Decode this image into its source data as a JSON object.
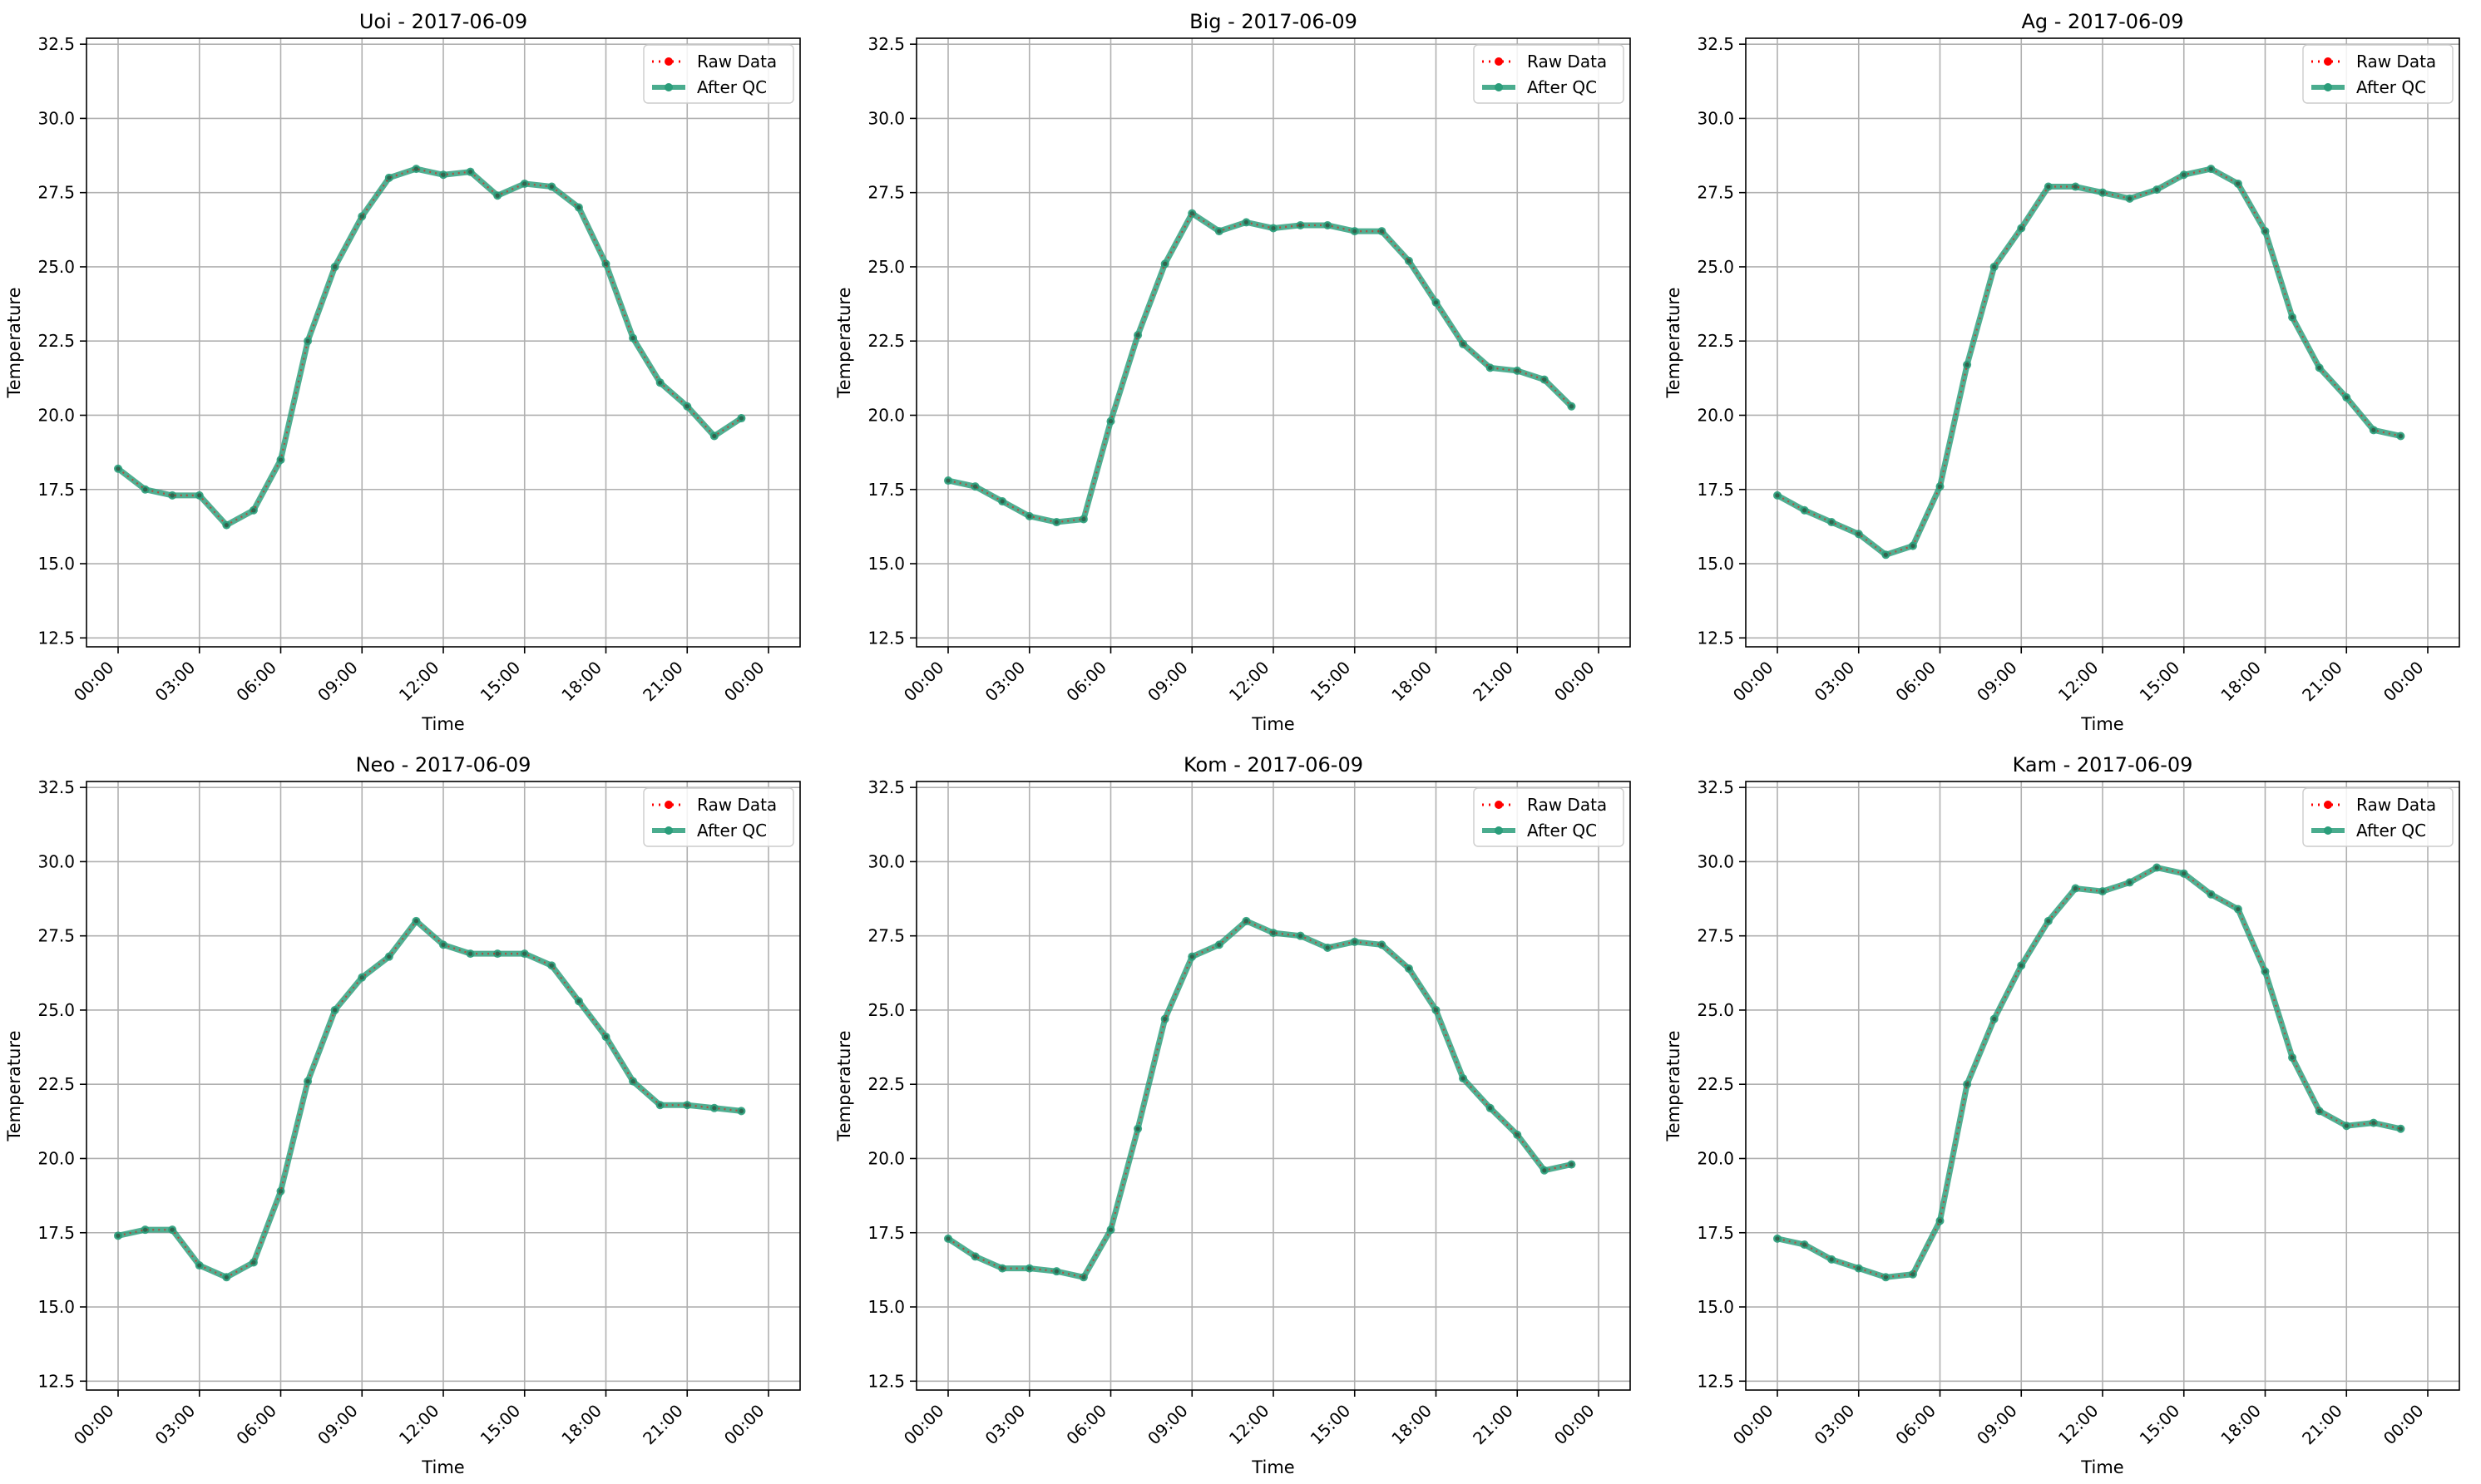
{
  "colors": {
    "raw": "#ff0000",
    "qc": "#2a9d7a",
    "grid": "#b0b0b0",
    "axis": "#000000"
  },
  "chart_data": [
    {
      "type": "line",
      "title": "Uoi - 2017-06-09",
      "xlabel": "Time",
      "ylabel": "Temperature",
      "x": [
        "00:00",
        "01:00",
        "02:00",
        "03:00",
        "04:00",
        "05:00",
        "06:00",
        "07:00",
        "08:00",
        "09:00",
        "10:00",
        "11:00",
        "12:00",
        "13:00",
        "14:00",
        "15:00",
        "16:00",
        "17:00",
        "18:00",
        "19:00",
        "20:00",
        "21:00",
        "22:00",
        "23:00"
      ],
      "x_ticks": [
        "00:00",
        "03:00",
        "06:00",
        "09:00",
        "12:00",
        "15:00",
        "18:00",
        "21:00",
        "00:00"
      ],
      "y_ticks": [
        "12.5",
        "15.0",
        "17.5",
        "20.0",
        "22.5",
        "25.0",
        "27.5",
        "30.0",
        "32.5"
      ],
      "ylim": [
        12.2,
        32.7
      ],
      "grid": true,
      "legend": "top-right",
      "series": [
        {
          "name": "Raw Data",
          "values": [
            18.2,
            17.5,
            17.3,
            17.3,
            16.3,
            16.8,
            18.5,
            22.5,
            25.0,
            26.7,
            28.0,
            28.3,
            28.1,
            28.2,
            27.4,
            27.8,
            27.7,
            27.0,
            25.1,
            22.6,
            21.1,
            20.3,
            19.3,
            19.9
          ]
        },
        {
          "name": "After QC",
          "values": [
            18.2,
            17.5,
            17.3,
            17.3,
            16.3,
            16.8,
            18.5,
            22.5,
            25.0,
            26.7,
            28.0,
            28.3,
            28.1,
            28.2,
            27.4,
            27.8,
            27.7,
            27.0,
            25.1,
            22.6,
            21.1,
            20.3,
            19.3,
            19.9
          ]
        }
      ]
    },
    {
      "type": "line",
      "title": "Big - 2017-06-09",
      "xlabel": "Time",
      "ylabel": "Temperature",
      "x": [
        "00:00",
        "01:00",
        "02:00",
        "03:00",
        "04:00",
        "05:00",
        "06:00",
        "07:00",
        "08:00",
        "09:00",
        "10:00",
        "11:00",
        "12:00",
        "13:00",
        "14:00",
        "15:00",
        "16:00",
        "17:00",
        "18:00",
        "19:00",
        "20:00",
        "21:00",
        "22:00",
        "23:00"
      ],
      "x_ticks": [
        "00:00",
        "03:00",
        "06:00",
        "09:00",
        "12:00",
        "15:00",
        "18:00",
        "21:00",
        "00:00"
      ],
      "y_ticks": [
        "12.5",
        "15.0",
        "17.5",
        "20.0",
        "22.5",
        "25.0",
        "27.5",
        "30.0",
        "32.5"
      ],
      "ylim": [
        12.2,
        32.7
      ],
      "grid": true,
      "legend": "top-right",
      "series": [
        {
          "name": "Raw Data",
          "values": [
            17.8,
            17.6,
            17.1,
            16.6,
            16.4,
            16.5,
            19.8,
            22.7,
            25.1,
            26.8,
            26.2,
            26.5,
            26.3,
            26.4,
            26.4,
            26.2,
            26.2,
            25.2,
            23.8,
            22.4,
            21.6,
            21.5,
            21.2,
            20.3
          ]
        },
        {
          "name": "After QC",
          "values": [
            17.8,
            17.6,
            17.1,
            16.6,
            16.4,
            16.5,
            19.8,
            22.7,
            25.1,
            26.8,
            26.2,
            26.5,
            26.3,
            26.4,
            26.4,
            26.2,
            26.2,
            25.2,
            23.8,
            22.4,
            21.6,
            21.5,
            21.2,
            20.3
          ]
        }
      ]
    },
    {
      "type": "line",
      "title": "Ag - 2017-06-09",
      "xlabel": "Time",
      "ylabel": "Temperature",
      "x": [
        "00:00",
        "01:00",
        "02:00",
        "03:00",
        "04:00",
        "05:00",
        "06:00",
        "07:00",
        "08:00",
        "09:00",
        "10:00",
        "11:00",
        "12:00",
        "13:00",
        "14:00",
        "15:00",
        "16:00",
        "17:00",
        "18:00",
        "19:00",
        "20:00",
        "21:00",
        "22:00",
        "23:00"
      ],
      "x_ticks": [
        "00:00",
        "03:00",
        "06:00",
        "09:00",
        "12:00",
        "15:00",
        "18:00",
        "21:00",
        "00:00"
      ],
      "y_ticks": [
        "12.5",
        "15.0",
        "17.5",
        "20.0",
        "22.5",
        "25.0",
        "27.5",
        "30.0",
        "32.5"
      ],
      "ylim": [
        12.2,
        32.7
      ],
      "grid": true,
      "legend": "top-right",
      "series": [
        {
          "name": "Raw Data",
          "values": [
            17.3,
            16.8,
            16.4,
            16.0,
            15.3,
            15.6,
            17.6,
            21.7,
            25.0,
            26.3,
            27.7,
            27.7,
            27.5,
            27.3,
            27.6,
            28.1,
            28.3,
            27.8,
            26.2,
            23.3,
            21.6,
            20.6,
            19.5,
            19.3
          ]
        },
        {
          "name": "After QC",
          "values": [
            17.3,
            16.8,
            16.4,
            16.0,
            15.3,
            15.6,
            17.6,
            21.7,
            25.0,
            26.3,
            27.7,
            27.7,
            27.5,
            27.3,
            27.6,
            28.1,
            28.3,
            27.8,
            26.2,
            23.3,
            21.6,
            20.6,
            19.5,
            19.3
          ]
        }
      ]
    },
    {
      "type": "line",
      "title": "Neo - 2017-06-09",
      "xlabel": "Time",
      "ylabel": "Temperature",
      "x": [
        "00:00",
        "01:00",
        "02:00",
        "03:00",
        "04:00",
        "05:00",
        "06:00",
        "07:00",
        "08:00",
        "09:00",
        "10:00",
        "11:00",
        "12:00",
        "13:00",
        "14:00",
        "15:00",
        "16:00",
        "17:00",
        "18:00",
        "19:00",
        "20:00",
        "21:00",
        "22:00",
        "23:00"
      ],
      "x_ticks": [
        "00:00",
        "03:00",
        "06:00",
        "09:00",
        "12:00",
        "15:00",
        "18:00",
        "21:00",
        "00:00"
      ],
      "y_ticks": [
        "12.5",
        "15.0",
        "17.5",
        "20.0",
        "22.5",
        "25.0",
        "27.5",
        "30.0",
        "32.5"
      ],
      "ylim": [
        12.2,
        32.7
      ],
      "grid": true,
      "legend": "top-right",
      "series": [
        {
          "name": "Raw Data",
          "values": [
            17.4,
            17.6,
            17.6,
            16.4,
            16.0,
            16.5,
            18.9,
            22.6,
            25.0,
            26.1,
            26.8,
            28.0,
            27.2,
            26.9,
            26.9,
            26.9,
            26.5,
            25.3,
            24.1,
            22.6,
            21.8,
            21.8,
            21.7,
            21.6
          ]
        },
        {
          "name": "After QC",
          "values": [
            17.4,
            17.6,
            17.6,
            16.4,
            16.0,
            16.5,
            18.9,
            22.6,
            25.0,
            26.1,
            26.8,
            28.0,
            27.2,
            26.9,
            26.9,
            26.9,
            26.5,
            25.3,
            24.1,
            22.6,
            21.8,
            21.8,
            21.7,
            21.6
          ]
        }
      ]
    },
    {
      "type": "line",
      "title": "Kom - 2017-06-09",
      "xlabel": "Time",
      "ylabel": "Temperature",
      "x": [
        "00:00",
        "01:00",
        "02:00",
        "03:00",
        "04:00",
        "05:00",
        "06:00",
        "07:00",
        "08:00",
        "09:00",
        "10:00",
        "11:00",
        "12:00",
        "13:00",
        "14:00",
        "15:00",
        "16:00",
        "17:00",
        "18:00",
        "19:00",
        "20:00",
        "21:00",
        "22:00",
        "23:00"
      ],
      "x_ticks": [
        "00:00",
        "03:00",
        "06:00",
        "09:00",
        "12:00",
        "15:00",
        "18:00",
        "21:00",
        "00:00"
      ],
      "y_ticks": [
        "12.5",
        "15.0",
        "17.5",
        "20.0",
        "22.5",
        "25.0",
        "27.5",
        "30.0",
        "32.5"
      ],
      "ylim": [
        12.2,
        32.7
      ],
      "grid": true,
      "legend": "top-right",
      "series": [
        {
          "name": "Raw Data",
          "values": [
            17.3,
            16.7,
            16.3,
            16.3,
            16.2,
            16.0,
            17.6,
            21.0,
            24.7,
            26.8,
            27.2,
            28.0,
            27.6,
            27.5,
            27.1,
            27.3,
            27.2,
            26.4,
            25.0,
            22.7,
            21.7,
            20.8,
            19.6,
            19.8
          ]
        },
        {
          "name": "After QC",
          "values": [
            17.3,
            16.7,
            16.3,
            16.3,
            16.2,
            16.0,
            17.6,
            21.0,
            24.7,
            26.8,
            27.2,
            28.0,
            27.6,
            27.5,
            27.1,
            27.3,
            27.2,
            26.4,
            25.0,
            22.7,
            21.7,
            20.8,
            19.6,
            19.8
          ]
        }
      ]
    },
    {
      "type": "line",
      "title": "Kam - 2017-06-09",
      "xlabel": "Time",
      "ylabel": "Temperature",
      "x": [
        "00:00",
        "01:00",
        "02:00",
        "03:00",
        "04:00",
        "05:00",
        "06:00",
        "07:00",
        "08:00",
        "09:00",
        "10:00",
        "11:00",
        "12:00",
        "13:00",
        "14:00",
        "15:00",
        "16:00",
        "17:00",
        "18:00",
        "19:00",
        "20:00",
        "21:00",
        "22:00",
        "23:00"
      ],
      "x_ticks": [
        "00:00",
        "03:00",
        "06:00",
        "09:00",
        "12:00",
        "15:00",
        "18:00",
        "21:00",
        "00:00"
      ],
      "y_ticks": [
        "12.5",
        "15.0",
        "17.5",
        "20.0",
        "22.5",
        "25.0",
        "27.5",
        "30.0",
        "32.5"
      ],
      "ylim": [
        12.2,
        32.7
      ],
      "grid": true,
      "legend": "top-right",
      "series": [
        {
          "name": "Raw Data",
          "values": [
            17.3,
            17.1,
            16.6,
            16.3,
            16.0,
            16.1,
            17.9,
            22.5,
            24.7,
            26.5,
            28.0,
            29.1,
            29.0,
            29.3,
            29.8,
            29.6,
            28.9,
            28.4,
            26.3,
            23.4,
            21.6,
            21.1,
            21.2,
            21.0
          ]
        },
        {
          "name": "After QC",
          "values": [
            17.3,
            17.1,
            16.6,
            16.3,
            16.0,
            16.1,
            17.9,
            22.5,
            24.7,
            26.5,
            28.0,
            29.1,
            29.0,
            29.3,
            29.8,
            29.6,
            28.9,
            28.4,
            26.3,
            23.4,
            21.6,
            21.1,
            21.2,
            21.0
          ]
        }
      ]
    }
  ]
}
